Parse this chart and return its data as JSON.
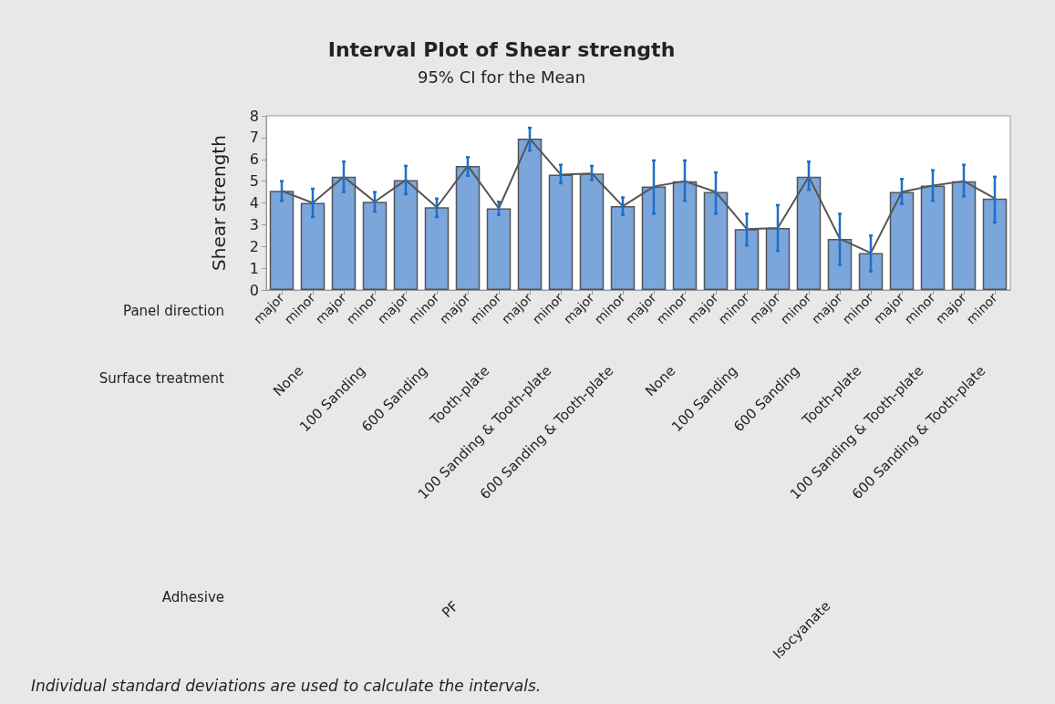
{
  "chart_data": {
    "type": "bar",
    "title": "Interval Plot of Shear strength",
    "subtitle": "95% CI for the Mean",
    "ylabel": "Shear strength",
    "categories": [
      "major",
      "minor",
      "major",
      "minor",
      "major",
      "minor",
      "major",
      "minor",
      "major",
      "minor",
      "major",
      "minor",
      "major",
      "minor",
      "major",
      "minor",
      "major",
      "minor",
      "major",
      "minor",
      "major",
      "minor",
      "major",
      "minor"
    ],
    "series": [
      {
        "color": "#7aa6dc",
        "values": [
          4.55,
          4.0,
          5.2,
          4.05,
          5.05,
          3.8,
          5.7,
          3.75,
          6.95,
          5.3,
          5.35,
          3.85,
          4.75,
          5.0,
          4.5,
          2.8,
          2.85,
          5.2,
          2.35,
          1.7,
          4.5,
          4.8,
          5.0,
          4.2
        ],
        "errors": [
          [
            4.1,
            5.0
          ],
          [
            3.35,
            4.65
          ],
          [
            4.5,
            5.9
          ],
          [
            3.6,
            4.5
          ],
          [
            4.4,
            5.7
          ],
          [
            3.35,
            4.2
          ],
          [
            5.25,
            6.1
          ],
          [
            3.45,
            4.05
          ],
          [
            6.4,
            7.45
          ],
          [
            4.9,
            5.75
          ],
          [
            5.05,
            5.7
          ],
          [
            3.45,
            4.25
          ],
          [
            3.5,
            5.95
          ],
          [
            4.1,
            5.95
          ],
          [
            3.5,
            5.4
          ],
          [
            2.05,
            3.5
          ],
          [
            1.8,
            3.9
          ],
          [
            4.6,
            5.9
          ],
          [
            1.15,
            3.5
          ],
          [
            0.85,
            2.5
          ],
          [
            3.95,
            5.1
          ],
          [
            4.1,
            5.5
          ],
          [
            4.3,
            5.75
          ],
          [
            3.1,
            5.2
          ]
        ]
      },
      {
        "type": "line",
        "color": "#555555",
        "values": [
          4.55,
          4.0,
          5.2,
          4.05,
          5.05,
          3.8,
          5.7,
          3.75,
          6.95,
          5.3,
          5.35,
          3.85,
          4.75,
          5.0,
          4.5,
          2.8,
          2.85,
          5.2,
          2.35,
          1.7,
          4.5,
          4.8,
          5.0,
          4.2
        ]
      }
    ],
    "ylim": [
      0,
      8
    ],
    "yticks": [
      0,
      1,
      2,
      3,
      4,
      5,
      6,
      7,
      8
    ],
    "annotations": [
      "Panel direction",
      "Surface treatment",
      "Adhesive",
      "None",
      "100 Sanding",
      "600 Sanding",
      "Tooth-plate",
      "100 Sanding & Tooth-plate",
      "600 Sanding & Tooth-plate",
      "None",
      "100 Sanding",
      "600 Sanding",
      "Tooth-plate",
      "100 Sanding & Tooth-plate",
      "600 Sanding & Tooth-plate",
      "PF",
      "Isocyanate",
      "Individual standard deviations are used to calculate the intervals."
    ]
  }
}
